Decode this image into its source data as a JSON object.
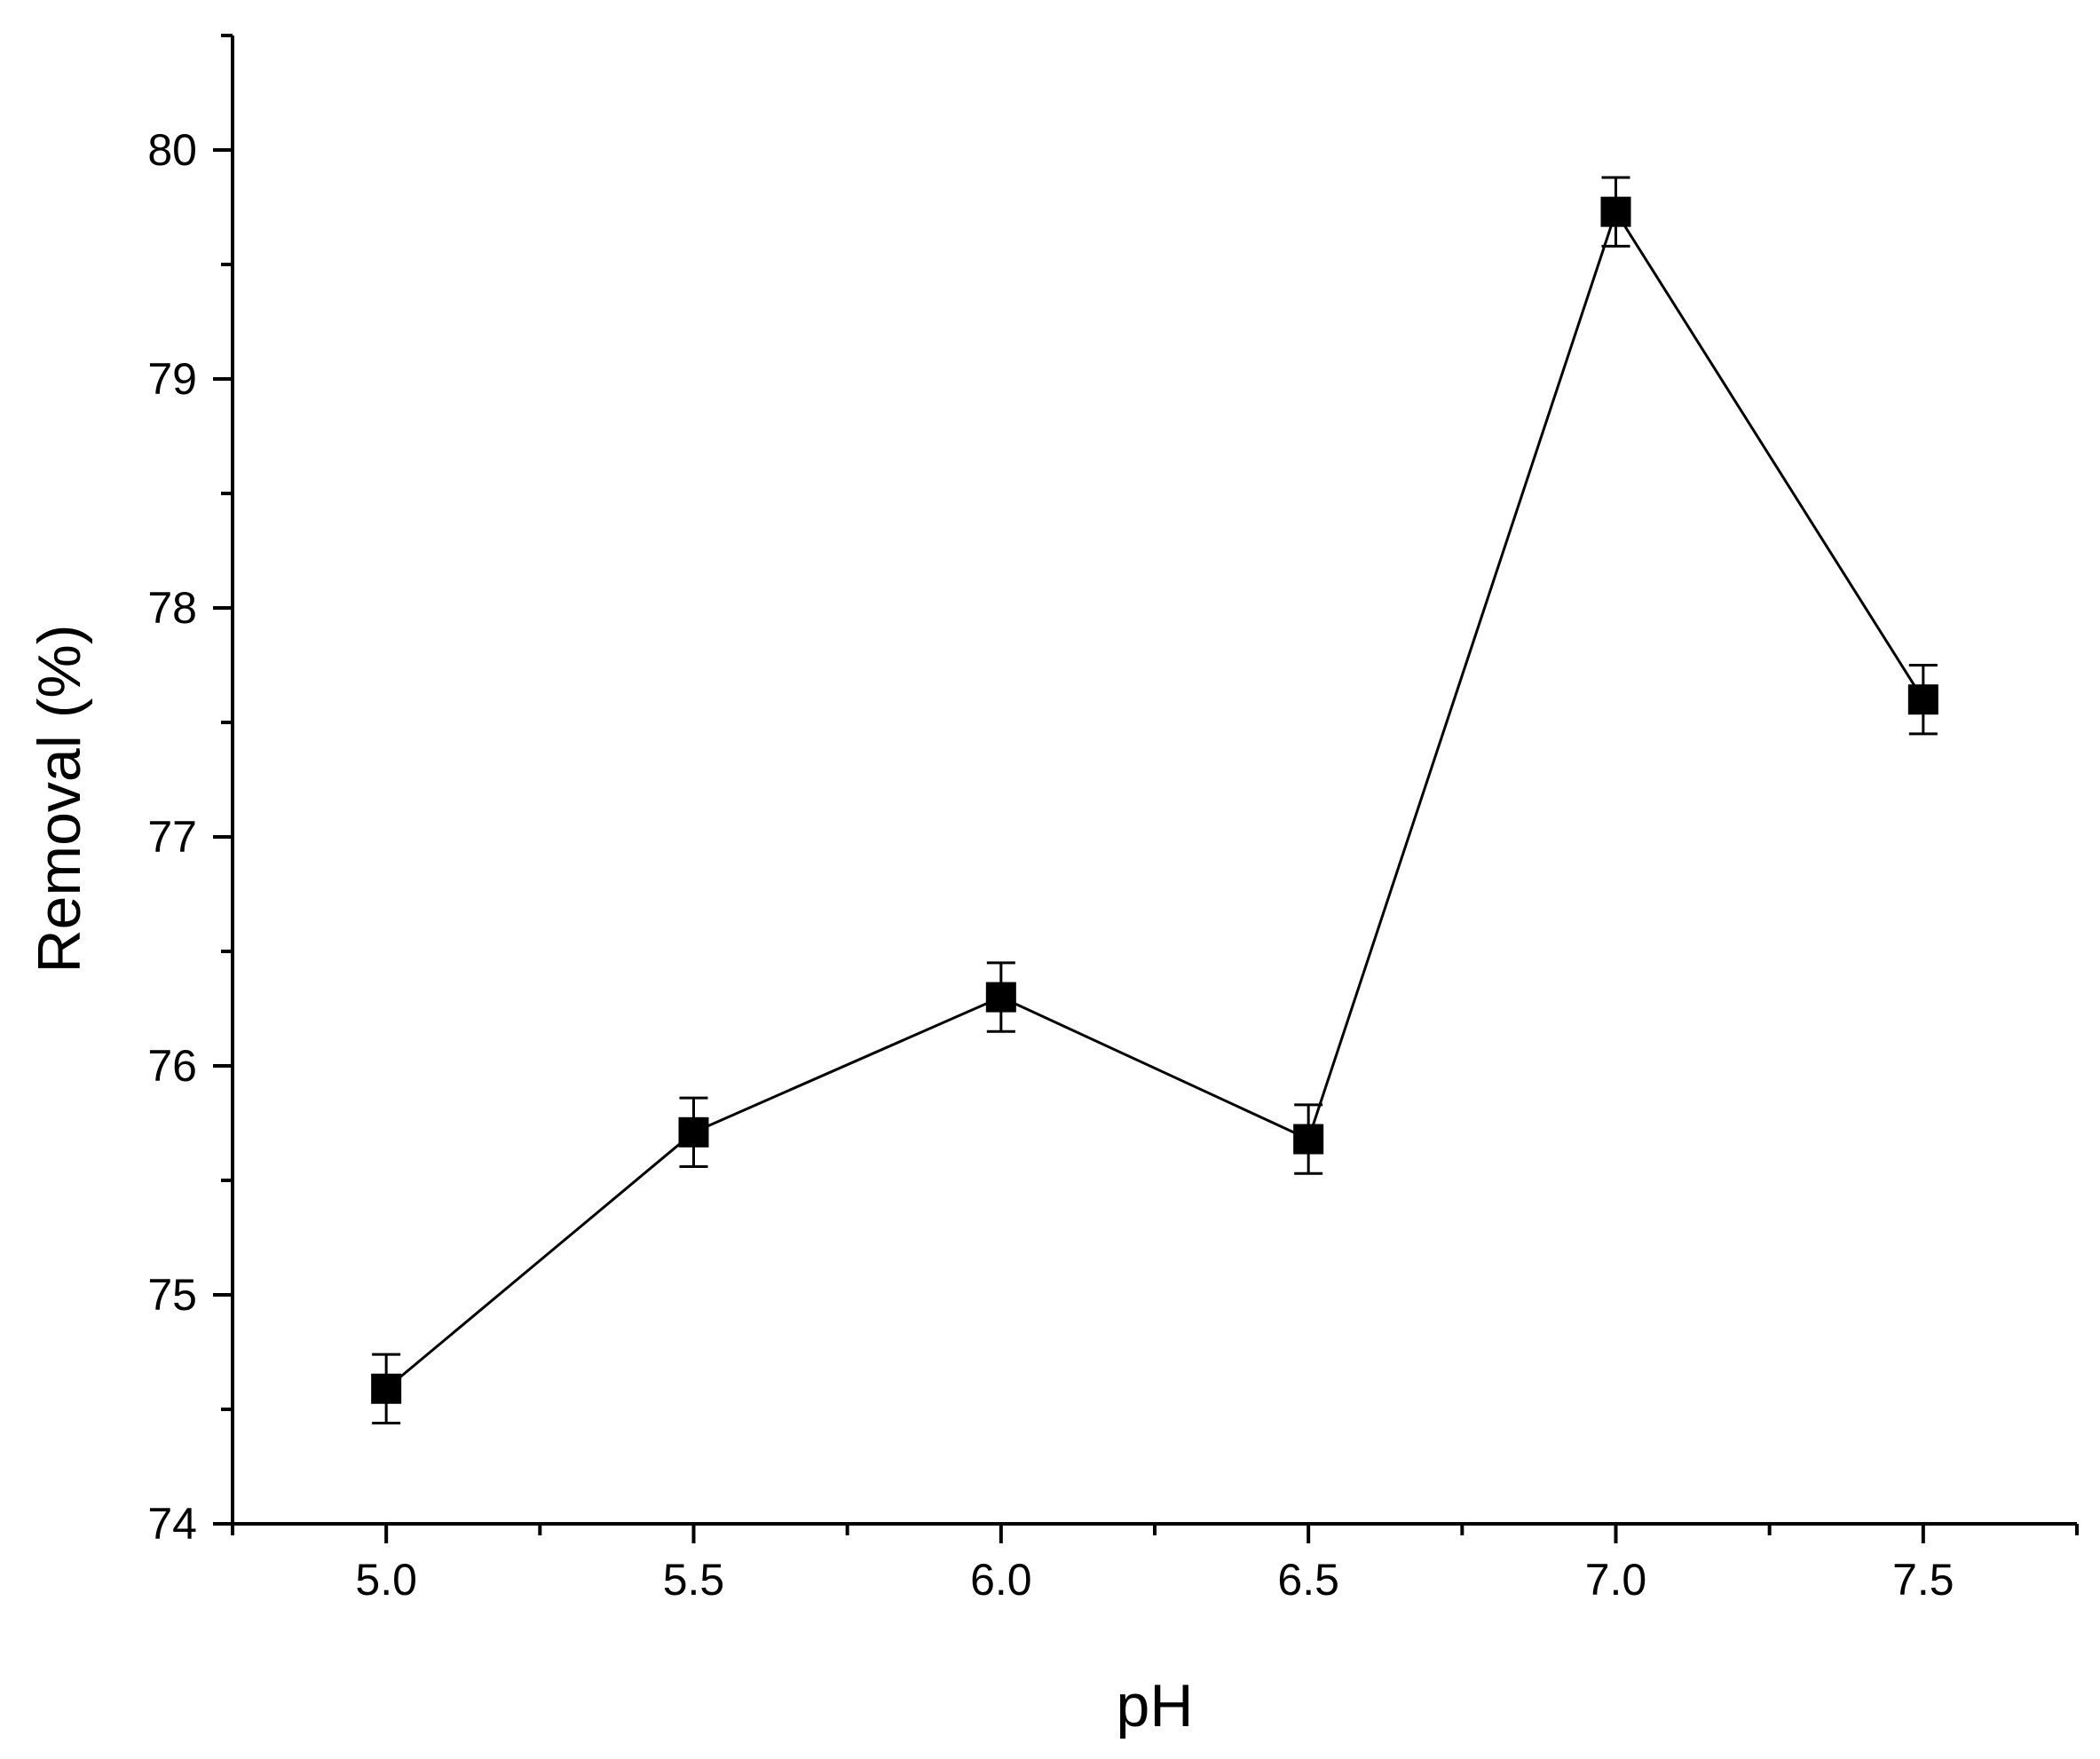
{
  "chart_data": {
    "type": "line",
    "xlabel": "pH",
    "ylabel": "Removal (%)",
    "xlim": [
      4.75,
      7.75
    ],
    "ylim": [
      74,
      80.5
    ],
    "x_ticks": [
      5.0,
      5.5,
      6.0,
      6.5,
      7.0,
      7.5
    ],
    "x_tick_labels": [
      "5.0",
      "5.5",
      "6.0",
      "6.5",
      "7.0",
      "7.5"
    ],
    "x_minor_ticks": [
      4.75,
      5.25,
      5.75,
      6.25,
      6.75,
      7.25,
      7.75
    ],
    "y_ticks": [
      74,
      75,
      76,
      77,
      78,
      79,
      80
    ],
    "y_tick_labels": [
      "74",
      "75",
      "76",
      "77",
      "78",
      "79",
      "80"
    ],
    "y_minor_ticks": [
      74.5,
      75.5,
      76.5,
      77.5,
      78.5,
      79.5,
      80.5
    ],
    "grid": false,
    "legend": "none",
    "marker": "square",
    "color": "#000000",
    "series": [
      {
        "x": [
          5.0,
          5.5,
          6.0,
          6.5,
          7.0,
          7.5
        ],
        "y": [
          74.59,
          75.71,
          76.3,
          75.68,
          79.73,
          77.6
        ],
        "error": [
          0.15,
          0.15,
          0.15,
          0.15,
          0.15,
          0.15
        ]
      }
    ]
  }
}
